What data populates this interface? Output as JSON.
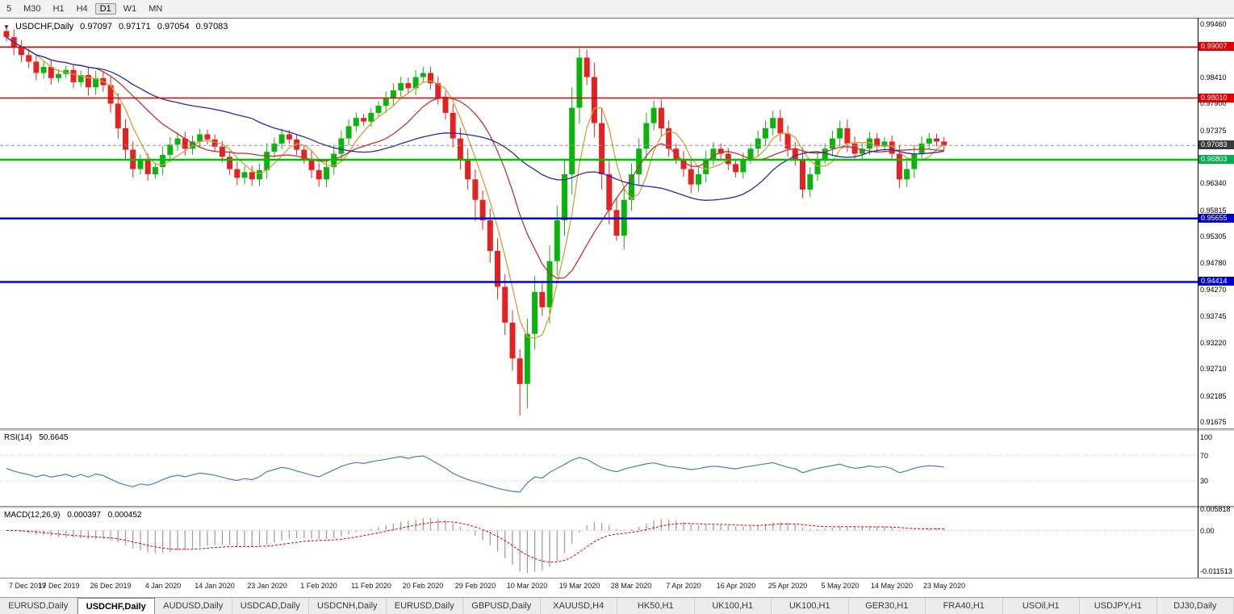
{
  "window": {
    "toolbar": {
      "timeframes": [
        {
          "label": "5",
          "active": false
        },
        {
          "label": "M30",
          "active": false
        },
        {
          "label": "H1",
          "active": false
        },
        {
          "label": "H4",
          "active": false
        },
        {
          "label": "D1",
          "active": true
        },
        {
          "label": "W1",
          "active": false
        },
        {
          "label": "MN",
          "active": false
        }
      ]
    },
    "symbol_info": {
      "marker": "▼",
      "symbol": "USDCHF,Daily",
      "open": "0.97097",
      "high": "0.97171",
      "low": "0.97054",
      "close": "0.97083"
    },
    "tabs": [
      {
        "label": "EURUSD,Daily",
        "active": false
      },
      {
        "label": "USDCHF,Daily",
        "active": true
      },
      {
        "label": "AUDUSD,Daily",
        "active": false
      },
      {
        "label": "USDCAD,Daily",
        "active": false
      },
      {
        "label": "USDCNH,Daily",
        "active": false
      },
      {
        "label": "EURUSD,Daily",
        "active": false
      },
      {
        "label": "GBPUSD,Daily",
        "active": false
      },
      {
        "label": "XAUUSD,H4",
        "active": false
      },
      {
        "label": "HK50,H1",
        "active": false
      },
      {
        "label": "UK100,H1",
        "active": false
      },
      {
        "label": "UK100,H1",
        "active": false
      },
      {
        "label": "GER30,H1",
        "active": false
      },
      {
        "label": "FRA40,H1",
        "active": false
      },
      {
        "label": "USOil,H1",
        "active": false
      },
      {
        "label": "USDJPY,H1",
        "active": false
      },
      {
        "label": "DJ30,Daily",
        "active": false
      }
    ]
  },
  "rsi_panel": {
    "name": "RSI(14)",
    "value": "50.6645",
    "axis_labels": [
      {
        "label": "100",
        "value": 100
      },
      {
        "label": "70",
        "value": 70
      },
      {
        "label": "30",
        "value": 30
      }
    ]
  },
  "macd_panel": {
    "name": "MACD(12,26,9)",
    "macd_value": "0.000397",
    "signal_value": "0.000452",
    "axis_labels": [
      {
        "label": "0.005818",
        "value": 0.0059
      },
      {
        "label": "0.00",
        "value": 0
      },
      {
        "label": "-0.011513",
        "value": -0.0115
      }
    ]
  },
  "price_axis": {
    "ticks": [
      "0.99460",
      "0.98410",
      "0.97900",
      "0.97375",
      "0.96340",
      "0.95815",
      "0.95305",
      "0.94780",
      "0.94270",
      "0.93745",
      "0.93220",
      "0.92710",
      "0.92185",
      "0.91675"
    ],
    "badges": [
      {
        "label": "0.99007",
        "price": 0.99007,
        "color": "#e00000"
      },
      {
        "label": "0.98010",
        "price": 0.9801,
        "color": "#e00000"
      },
      {
        "label": "0.97083",
        "price": 0.97083,
        "color": "#3a3a3a"
      },
      {
        "label": "0.96803",
        "price": 0.96803,
        "color": "#00b050"
      },
      {
        "label": "0.95655",
        "price": 0.95655,
        "color": "#0000cc"
      },
      {
        "label": "0.94414",
        "price": 0.94414,
        "color": "#0000cc"
      }
    ]
  },
  "chart_data": {
    "type": "candlestick",
    "symbol": "USDCHF",
    "timeframe": "Daily",
    "title": "USDCHF,Daily 0.97097 0.97171 0.97054 0.97083",
    "y_range": {
      "top": 0.9958,
      "bottom": 0.9155
    },
    "x_axis": {
      "labels": [
        "7 Dec 2019",
        "17 Dec 2019",
        "26 Dec 2019",
        "4 Jan 2020",
        "14 Jan 2020",
        "23 Jan 2020",
        "1 Feb 2020",
        "11 Feb 2020",
        "20 Feb 2020",
        "29 Feb 2020",
        "10 Mar 2020",
        "19 Mar 2020",
        "28 Mar 2020",
        "7 Apr 2020",
        "16 Apr 2020",
        "25 Apr 2020",
        "5 May 2020",
        "14 May 2020",
        "23 May 2020"
      ],
      "label_step": 7
    },
    "candles": {
      "up_color": "#0db30d",
      "down_color": "#e32222",
      "first_open": 0.9932,
      "closes": [
        0.992,
        0.99,
        0.9885,
        0.9872,
        0.985,
        0.9862,
        0.984,
        0.9848,
        0.9856,
        0.9832,
        0.9846,
        0.9822,
        0.984,
        0.9826,
        0.979,
        0.9742,
        0.97,
        0.9662,
        0.968,
        0.9652,
        0.9666,
        0.969,
        0.971,
        0.9722,
        0.9702,
        0.9716,
        0.973,
        0.972,
        0.9706,
        0.9686,
        0.9662,
        0.9645,
        0.9656,
        0.9642,
        0.966,
        0.9696,
        0.9712,
        0.973,
        0.972,
        0.97,
        0.9682,
        0.966,
        0.9642,
        0.9666,
        0.9692,
        0.9722,
        0.9746,
        0.9762,
        0.9755,
        0.9772,
        0.9786,
        0.98,
        0.9816,
        0.983,
        0.982,
        0.9842,
        0.985,
        0.983,
        0.9802,
        0.9772,
        0.9722,
        0.9682,
        0.9642,
        0.9602,
        0.9562,
        0.9502,
        0.9432,
        0.9362,
        0.9292,
        0.9242,
        0.934,
        0.9422,
        0.9392,
        0.9482,
        0.9562,
        0.9652,
        0.9782,
        0.988,
        0.9842,
        0.9752,
        0.9652,
        0.9582,
        0.9532,
        0.9602,
        0.9652,
        0.9702,
        0.9752,
        0.9782,
        0.9742,
        0.9702,
        0.9682,
        0.9662,
        0.9632,
        0.9652,
        0.9682,
        0.9702,
        0.9692,
        0.9672,
        0.9656,
        0.9682,
        0.9702,
        0.9722,
        0.9742,
        0.9762,
        0.9732,
        0.9702,
        0.9682,
        0.9622,
        0.9652,
        0.9682,
        0.9702,
        0.9722,
        0.9742,
        0.9712,
        0.9692,
        0.9702,
        0.9722,
        0.9706,
        0.9716,
        0.9692,
        0.9642,
        0.9662,
        0.9692,
        0.9712,
        0.9722,
        0.9716,
        0.97083
      ],
      "overrides": {
        "0": {
          "high": 0.9938
        },
        "56": {
          "high": 0.9862
        },
        "63": {
          "low": 0.956
        },
        "69": {
          "low": 0.918
        },
        "70": {
          "low": 0.9195
        },
        "77": {
          "high": 0.9901
        },
        "82": {
          "low": 0.9522
        },
        "107": {
          "low": 0.9605
        },
        "120": {
          "low": 0.9625
        }
      }
    },
    "moving_averages": [
      {
        "period": 5,
        "color": "#d89c3c"
      },
      {
        "period": 13,
        "color": "#c03434"
      },
      {
        "period": 34,
        "color": "#2a2aa8"
      }
    ],
    "levels": [
      {
        "price": 0.99007,
        "color": "#e00000",
        "width": 1.6
      },
      {
        "price": 0.9801,
        "color": "#e00000",
        "width": 1.6
      },
      {
        "price": 0.96803,
        "color": "#00c000",
        "width": 2.5
      },
      {
        "price": 0.95655,
        "color": "#0000d0",
        "width": 2.5
      },
      {
        "price": 0.94414,
        "color": "#0000d0",
        "width": 2.5
      }
    ],
    "bid_line": {
      "price": 0.97083,
      "color": "#909090"
    },
    "indicators": {
      "rsi": {
        "period": 14,
        "current": 50.6645,
        "levels": [
          70,
          30
        ],
        "color": "#4682b4"
      },
      "macd": {
        "fast": 12,
        "slow": 26,
        "signal": 9,
        "current_macd": 0.000397,
        "current_signal": 0.000452,
        "histogram_color": "#a0a0a0",
        "signal_color": "#d40000"
      }
    }
  }
}
